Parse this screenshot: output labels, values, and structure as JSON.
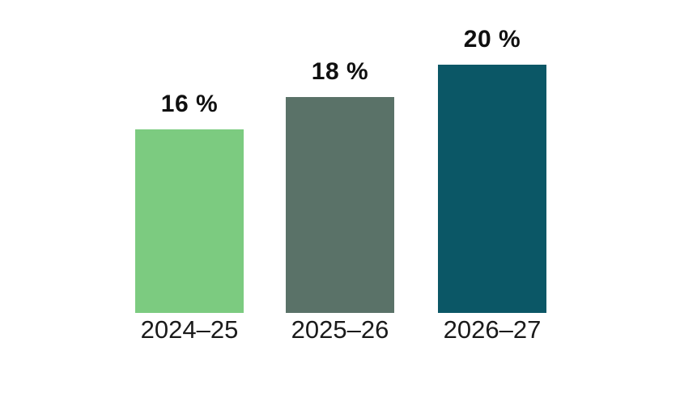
{
  "chart_data": {
    "type": "bar",
    "categories": [
      "2024–25",
      "2025–26",
      "2026–27"
    ],
    "values": [
      16,
      18,
      20
    ],
    "value_labels": [
      "16 %",
      "18 %",
      "20 %"
    ],
    "bar_colors": [
      "#7ccb80",
      "#5a7268",
      "#0b5766"
    ],
    "title": "",
    "xlabel": "",
    "ylabel": "",
    "ylim": [
      0,
      20
    ],
    "grid": false,
    "legend": false,
    "axes_visible": false,
    "value_label_position": "above-bars",
    "text_color": "#101010",
    "background_color": "#ffffff"
  }
}
